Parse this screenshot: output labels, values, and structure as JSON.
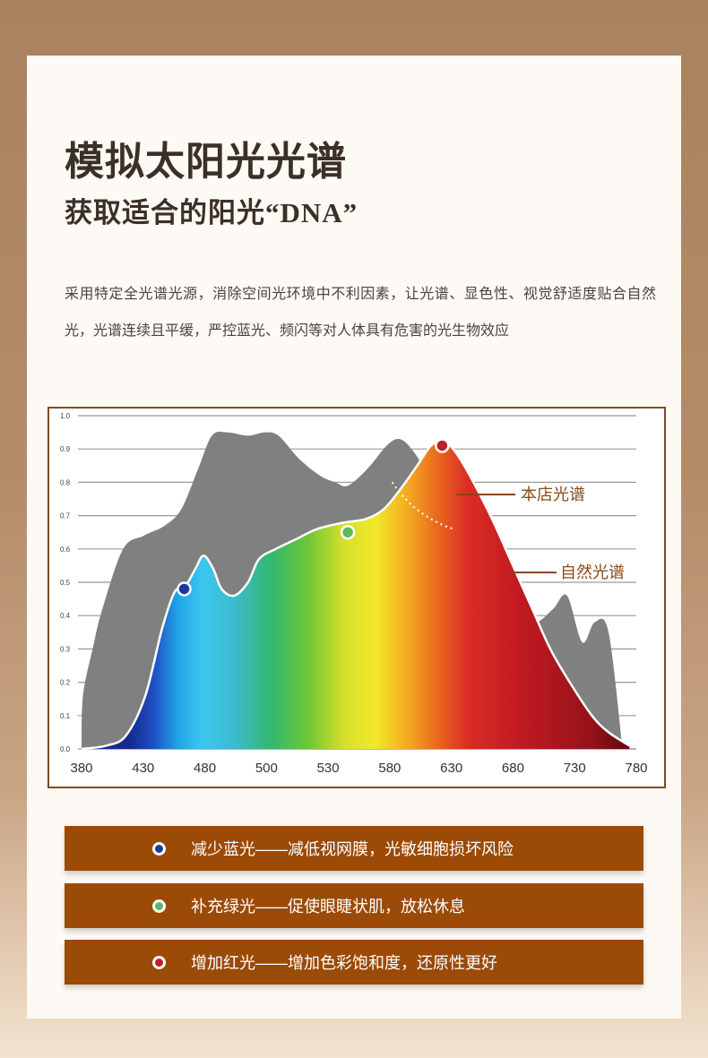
{
  "title": "模拟太阳光光谱",
  "subtitle": "获取适合的阳光“DNA”",
  "description": "采用特定全光谱光源，消除空间光环境中不利因素，让光谱、显色性、视觉舒适度贴合自然光，光谱连续且平缓，严控蓝光、频闪等对人体具有危害的光生物效应",
  "chart_data": {
    "type": "area",
    "xlabel": "",
    "ylabel": "",
    "xlim": [
      380,
      780
    ],
    "ylim": [
      0,
      1.0
    ],
    "x_ticks": [
      "380",
      "430",
      "480",
      "500",
      "530",
      "580",
      "630",
      "680",
      "730",
      "780"
    ],
    "y_ticks": [
      "0.0",
      "0.1",
      "0.2",
      "0.3",
      "0.4",
      "0.5",
      "0.6",
      "0.7",
      "0.8",
      "0.9",
      "1.0"
    ],
    "grid": true,
    "series": [
      {
        "name": "自然光谱",
        "color": "#808080",
        "points": [
          [
            380,
            0.0
          ],
          [
            381,
            0.16
          ],
          [
            388,
            0.3
          ],
          [
            395,
            0.42
          ],
          [
            410,
            0.6
          ],
          [
            425,
            0.64
          ],
          [
            440,
            0.67
          ],
          [
            452,
            0.72
          ],
          [
            464,
            0.84
          ],
          [
            474,
            0.94
          ],
          [
            485,
            0.95
          ],
          [
            500,
            0.94
          ],
          [
            512,
            0.95
          ],
          [
            522,
            0.94
          ],
          [
            537,
            0.87
          ],
          [
            552,
            0.82
          ],
          [
            563,
            0.8
          ],
          [
            572,
            0.79
          ],
          [
            586,
            0.84
          ],
          [
            600,
            0.91
          ],
          [
            609,
            0.93
          ],
          [
            618,
            0.9
          ],
          [
            629,
            0.83
          ],
          [
            642,
            0.74
          ],
          [
            654,
            0.65
          ],
          [
            666,
            0.57
          ],
          [
            680,
            0.52
          ],
          [
            694,
            0.42
          ],
          [
            707,
            0.38
          ],
          [
            720,
            0.42
          ],
          [
            730,
            0.46
          ],
          [
            741,
            0.32
          ],
          [
            750,
            0.38
          ],
          [
            760,
            0.35
          ],
          [
            770,
            0.0
          ]
        ]
      },
      {
        "name": "本店光谱",
        "color": "spectrum",
        "points": [
          [
            380,
            0.0
          ],
          [
            398,
            0.01
          ],
          [
            412,
            0.04
          ],
          [
            426,
            0.16
          ],
          [
            438,
            0.36
          ],
          [
            447,
            0.47
          ],
          [
            455,
            0.49
          ],
          [
            462,
            0.54
          ],
          [
            468,
            0.58
          ],
          [
            475,
            0.54
          ],
          [
            481,
            0.48
          ],
          [
            490,
            0.46
          ],
          [
            500,
            0.5
          ],
          [
            508,
            0.57
          ],
          [
            520,
            0.6
          ],
          [
            535,
            0.63
          ],
          [
            550,
            0.66
          ],
          [
            570,
            0.68
          ],
          [
            585,
            0.69
          ],
          [
            598,
            0.72
          ],
          [
            610,
            0.78
          ],
          [
            622,
            0.85
          ],
          [
            632,
            0.91
          ],
          [
            640,
            0.92
          ],
          [
            648,
            0.9
          ],
          [
            660,
            0.82
          ],
          [
            676,
            0.69
          ],
          [
            690,
            0.56
          ],
          [
            705,
            0.42
          ],
          [
            718,
            0.3
          ],
          [
            732,
            0.2
          ],
          [
            748,
            0.1
          ],
          [
            760,
            0.05
          ],
          [
            775,
            0.01
          ]
        ]
      }
    ],
    "markers": [
      {
        "label": "减少蓝光",
        "color": "#1a3aa0",
        "x": 454,
        "y": 0.48
      },
      {
        "label": "补充绿光",
        "color": "#5cb85c",
        "x": 572,
        "y": 0.65
      },
      {
        "label": "增加红光",
        "color": "#c0202a",
        "x": 640,
        "y": 0.91
      }
    ],
    "annotations": [
      "本店光谱",
      "自然光谱"
    ]
  },
  "legend_items": [
    {
      "dot_color": "#1a3aa0",
      "text": "减少蓝光——减低视网膜，光敏细胞损坏风险"
    },
    {
      "dot_color": "#5cb85c",
      "text": "补充绿光——促使眼睫状肌，放松休息"
    },
    {
      "dot_color": "#c0202a",
      "text": "增加红光——增加色彩饱和度，还原性更好"
    }
  ]
}
